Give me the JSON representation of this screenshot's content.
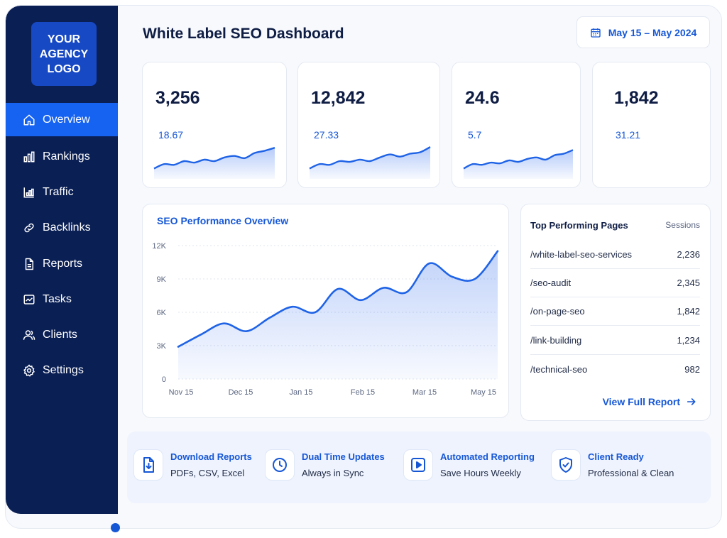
{
  "app": {
    "logo_lines": [
      "YOUR",
      "AGENCY",
      "LOGO"
    ],
    "title": "White Label SEO Dashboard",
    "date_range": "May 15 – May 2024"
  },
  "sidebar": {
    "items": [
      {
        "label": "Overview",
        "icon": "home-icon",
        "active": true
      },
      {
        "label": "Rankings",
        "icon": "bar-chart-icon",
        "active": false
      },
      {
        "label": "Traffic",
        "icon": "traffic-chart-icon",
        "active": false
      },
      {
        "label": "Backlinks",
        "icon": "link-icon",
        "active": false
      },
      {
        "label": "Reports",
        "icon": "document-icon",
        "active": false
      },
      {
        "label": "Tasks",
        "icon": "tasks-icon",
        "active": false
      },
      {
        "label": "Clients",
        "icon": "users-icon",
        "active": false
      },
      {
        "label": "Settings",
        "icon": "gear-icon",
        "active": false
      }
    ]
  },
  "kpis": [
    {
      "value": "3,256",
      "sub": "18.67",
      "has_sparkline": true,
      "spark": [
        12,
        18,
        17,
        22,
        20,
        24,
        22,
        27,
        29,
        26,
        33,
        36,
        40
      ]
    },
    {
      "value": "12,842",
      "sub": "27.33",
      "has_sparkline": true,
      "spark": [
        12,
        18,
        17,
        22,
        21,
        24,
        22,
        27,
        31,
        28,
        32,
        34,
        41
      ]
    },
    {
      "value": "24.6",
      "sub": "5.7",
      "has_sparkline": true,
      "spark": [
        12,
        18,
        17,
        20,
        19,
        23,
        21,
        25,
        27,
        24,
        30,
        32,
        37
      ]
    },
    {
      "value": "1,842",
      "sub": "31.21",
      "has_sparkline": false,
      "spark": []
    }
  ],
  "performance": {
    "title": "SEO Performance Overview"
  },
  "chart_data": {
    "type": "area",
    "title": "SEO Performance Overview",
    "xlabel": "",
    "ylabel": "",
    "ylim": [
      0,
      12000
    ],
    "yticks": [
      "0",
      "3K",
      "6K",
      "9K",
      "12K"
    ],
    "ytick_values": [
      0,
      3000,
      6000,
      9000,
      12000
    ],
    "categories": [
      "Nov 15",
      "Dec 15",
      "Jan 15",
      "Feb 15",
      "Mar 15",
      "May 15"
    ],
    "x": [
      0,
      0.5,
      1,
      1.5,
      2,
      2.5,
      3,
      3.5,
      4,
      4.5,
      5,
      5.5,
      6,
      6.5,
      7
    ],
    "series": [
      {
        "values": [
          2900,
          4000,
          5000,
          4300,
          5500,
          6500,
          6000,
          8100,
          7100,
          8200,
          7800,
          10400,
          9200,
          9000,
          11500
        ]
      }
    ],
    "grid": true,
    "legend": "none"
  },
  "top_pages": {
    "title": "Top Performing Pages",
    "column": "Sessions",
    "rows": [
      {
        "page": "/white-label-seo-services",
        "sessions": "2,236"
      },
      {
        "page": "/seo-audit",
        "sessions": "2,345"
      },
      {
        "page": "/on-page-seo",
        "sessions": "1,842"
      },
      {
        "page": "/link-building",
        "sessions": "1,234"
      },
      {
        "page": "/technical-seo",
        "sessions": "982"
      }
    ],
    "link": "View Full Report"
  },
  "features": [
    {
      "title": "Download Reports",
      "sub": "PDFs, CSV, Excel",
      "icon": "download-file-icon"
    },
    {
      "title": "Dual Time Updates",
      "sub": "Always in Sync",
      "icon": "clock-icon"
    },
    {
      "title": "Automated Reporting",
      "sub": "Save Hours Weekly",
      "icon": "play-icon"
    },
    {
      "title": "Client Ready",
      "sub": "Professional & Clean",
      "icon": "shield-check-icon"
    }
  ],
  "colors": {
    "sidebar": "#0a1f54",
    "accent": "#1663f2",
    "link": "#1657d6",
    "line": "#1f63e6"
  }
}
